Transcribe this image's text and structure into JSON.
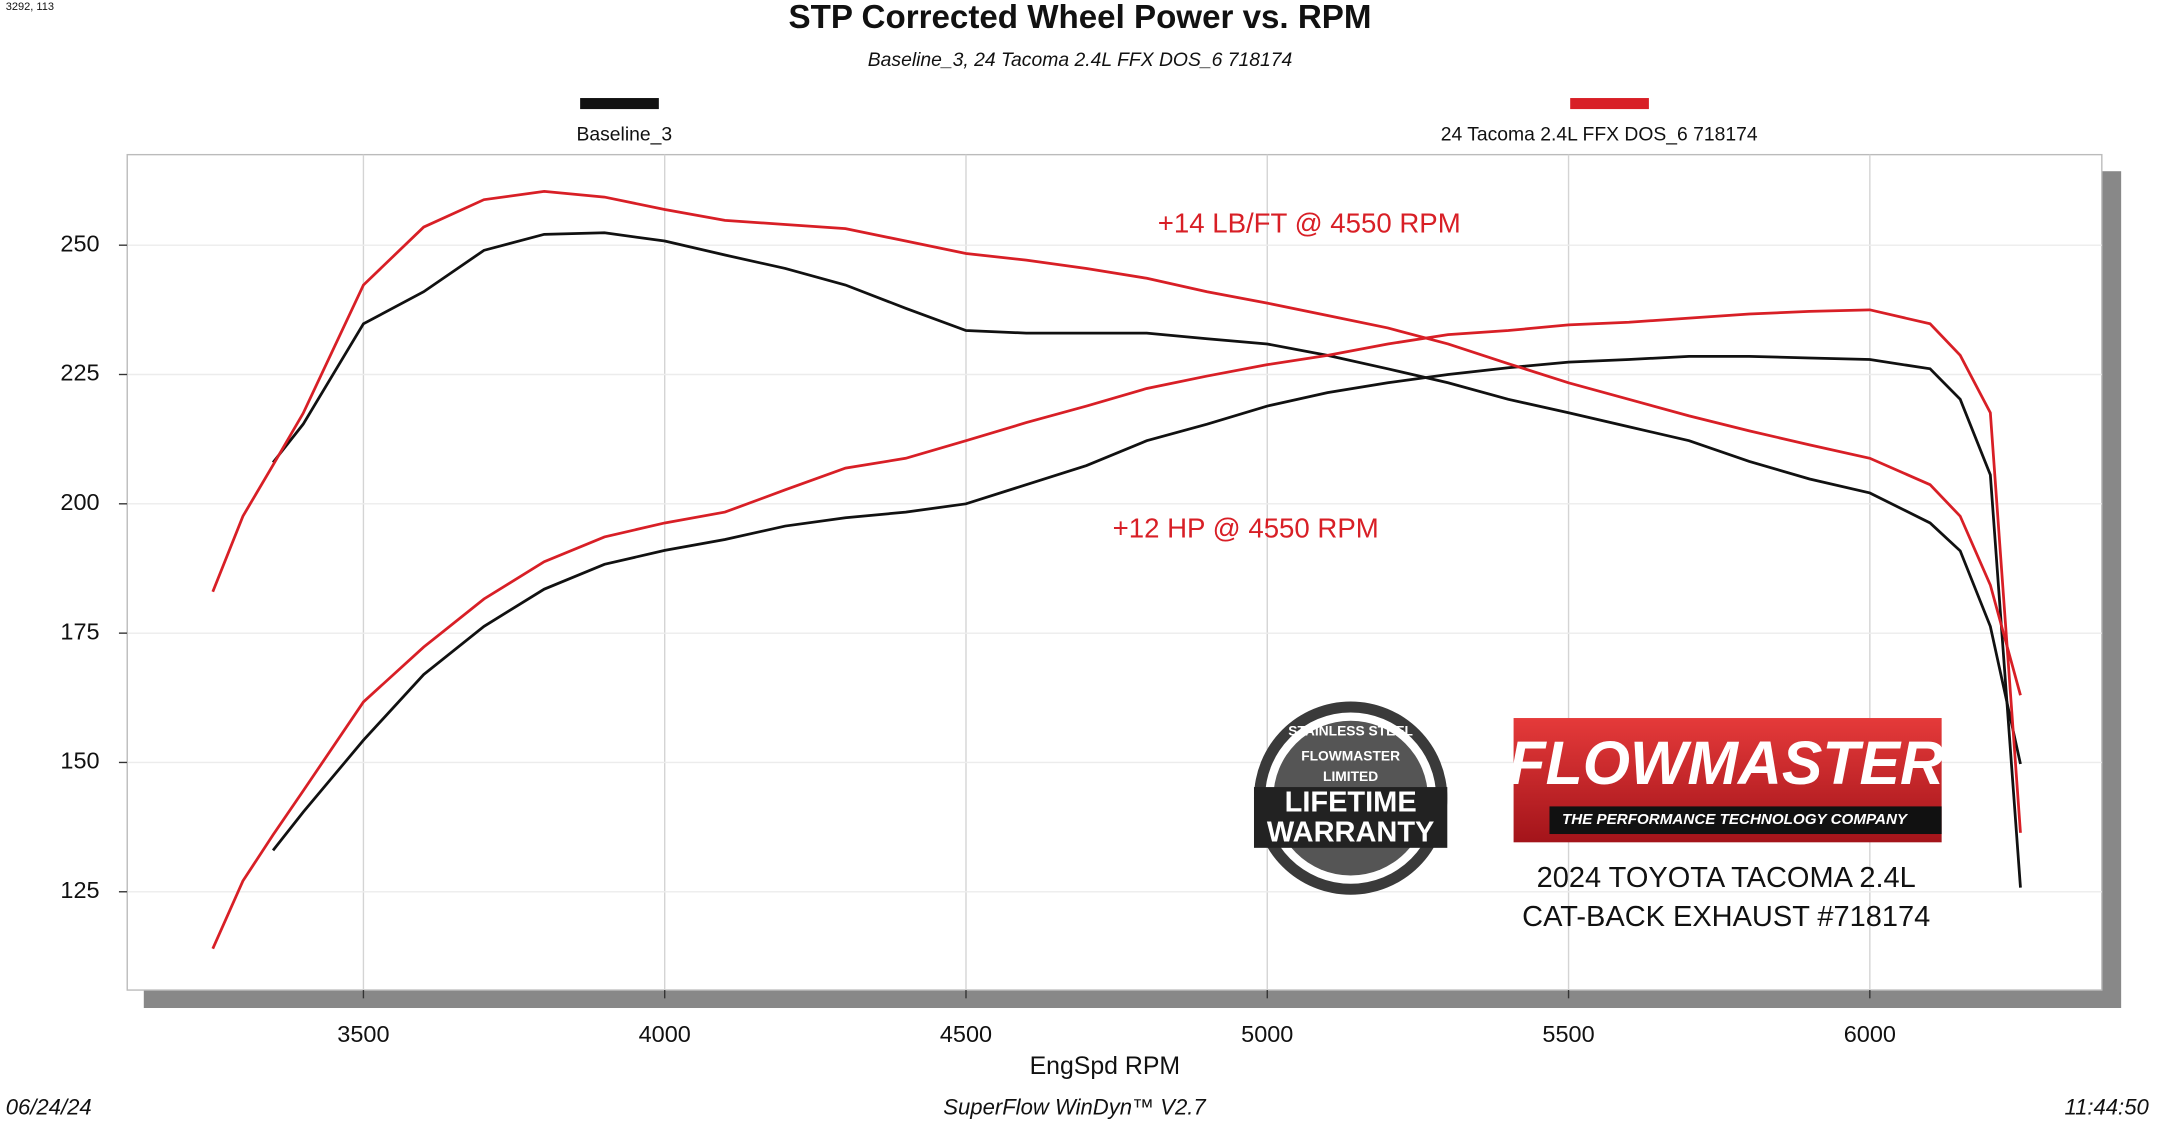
{
  "chart_data": {
    "type": "line",
    "title": "STP Corrected Wheel Power vs. RPM",
    "subtitle": "Baseline_3, 24 Tacoma 2.4L FFX DOS_6 718174",
    "x_label": "EngSpd  RPM",
    "annotations": [
      "+14 LB/FT @ 4550 RPM",
      "+12 HP @ 4550 RPM"
    ],
    "x": [
      3250,
      3300,
      3350,
      3400,
      3500,
      3600,
      3700,
      3800,
      3900,
      4000,
      4100,
      4200,
      4300,
      4400,
      4500,
      4600,
      4700,
      4800,
      4900,
      5000,
      5100,
      5200,
      5300,
      5400,
      5500,
      5600,
      5700,
      5800,
      5900,
      6000,
      6100,
      6150,
      6200,
      6250
    ],
    "series": [
      {
        "name": "Baseline_3",
        "color": "#111111",
        "values": [
          null,
          null,
          208,
          215.4,
          234.8,
          241,
          249,
          252.1,
          252.4,
          250.8,
          248.1,
          245.5,
          242.3,
          237.8,
          233.5,
          233,
          233,
          233,
          231.9,
          230.9,
          228.7,
          226.1,
          223.4,
          220.2,
          217.6,
          214.9,
          212.2,
          208.2,
          204.8,
          202.1,
          196.3,
          190.9,
          176.3,
          149.7
        ],
        "hp_values": [
          null,
          null,
          133,
          140.4,
          154.3,
          167,
          176.3,
          183.5,
          188.3,
          191,
          193.1,
          195.7,
          197.3,
          198.4,
          200,
          203.7,
          207.4,
          212.2,
          215.4,
          218.9,
          221.5,
          223.4,
          225,
          226.3,
          227.4,
          227.9,
          228.5,
          228.5,
          228.2,
          227.9,
          226.1,
          220.2,
          205.6,
          125.8
        ]
      },
      {
        "name": "24 Tacoma 2.4L FFX DOS_6 718174",
        "color": "#d81f26",
        "values": [
          183,
          197.6,
          207.5,
          217.5,
          242.3,
          253.5,
          258.8,
          260.4,
          259.3,
          256.9,
          254.8,
          254,
          253.2,
          250.8,
          248.4,
          247.1,
          245.5,
          243.6,
          241,
          238.8,
          236.4,
          234,
          230.9,
          227.1,
          223.4,
          220.2,
          217,
          214.1,
          211.4,
          208.8,
          203.7,
          197.6,
          184.3,
          163
        ],
        "hp_values": [
          114,
          127.1,
          136,
          144.5,
          161.7,
          172.3,
          181.6,
          188.8,
          193.6,
          196.3,
          198.4,
          202.7,
          206.9,
          208.8,
          212.2,
          215.7,
          218.9,
          222.3,
          224.7,
          226.9,
          228.7,
          230.9,
          232.7,
          233.5,
          234.6,
          235.1,
          235.9,
          236.7,
          237.2,
          237.5,
          234.8,
          228.7,
          217.6,
          136.4
        ]
      }
    ],
    "xlim": [
      3108,
      6385
    ],
    "ylim": [
      106,
      267.5
    ],
    "xticks": [
      3500,
      4000,
      4500,
      5000,
      5500,
      6000
    ],
    "yticks": [
      125,
      150,
      175,
      200,
      225,
      250
    ],
    "grid": true
  },
  "corner_note": "3292, 113",
  "footer": {
    "date": "06/24/24",
    "software": "SuperFlow WinDyn™ V2.7",
    "time": "11:44:50"
  },
  "branding": {
    "badge": [
      "STAINLESS STEEL",
      "FLOWMASTER",
      "LIMITED",
      "LIFETIME",
      "WARRANTY"
    ],
    "logo": "FLOWMASTER",
    "tagline": "THE PERFORMANCE TECHNOLOGY COMPANY",
    "caption": [
      "2024 TOYOTA TACOMA 2.4L",
      "CAT-BACK EXHAUST #718174"
    ]
  }
}
